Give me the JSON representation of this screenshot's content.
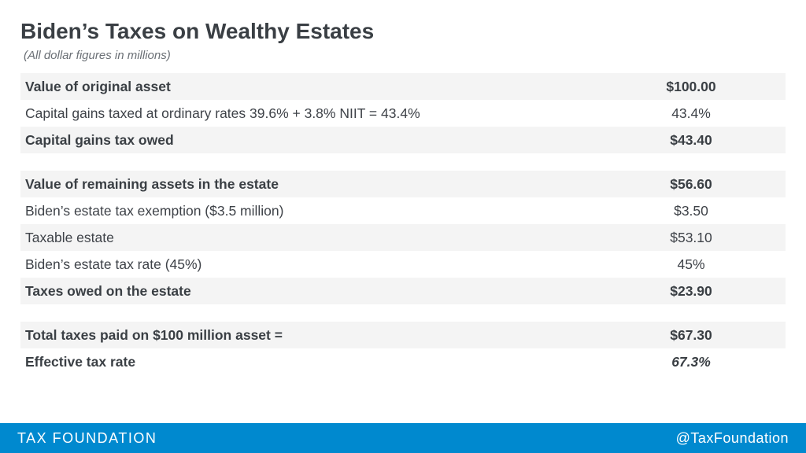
{
  "title": "Biden’s Taxes on Wealthy Estates",
  "subtitle": "(All dollar figures in millions)",
  "rows": [
    {
      "label": "Value of original asset",
      "value": "$100.00",
      "bold": true,
      "shaded": true
    },
    {
      "label": "Capital gains taxed at ordinary rates 39.6% + 3.8% NIIT = 43.4%",
      "value": "43.4%",
      "bold": false,
      "shaded": false
    },
    {
      "label": "Capital gains tax owed",
      "value": "$43.40",
      "bold": true,
      "shaded": true
    },
    {
      "spacer": true
    },
    {
      "label": "Value of remaining assets in the estate",
      "value": "$56.60",
      "bold": true,
      "shaded": true
    },
    {
      "label": "Biden’s estate tax exemption ($3.5 million)",
      "value": "$3.50",
      "bold": false,
      "shaded": false
    },
    {
      "label": "Taxable estate",
      "value": "$53.10",
      "bold": false,
      "shaded": true
    },
    {
      "label": "Biden’s estate tax rate (45%)",
      "value": "45%",
      "bold": false,
      "shaded": false
    },
    {
      "label": "Taxes owed on the estate",
      "value": "$23.90",
      "bold": true,
      "shaded": true
    },
    {
      "spacer": true
    },
    {
      "label": "Total taxes paid on $100 million asset =",
      "value": "$67.30",
      "bold": true,
      "shaded": true
    },
    {
      "label": "Effective tax rate",
      "value": "67.3%",
      "bold": true,
      "shaded": false,
      "italicValue": true
    }
  ],
  "footer": {
    "org": "TAX FOUNDATION",
    "handle": "@TaxFoundation",
    "bg": "#0089cf",
    "fg": "#ffffff"
  },
  "colors": {
    "shaded_bg": "#f4f4f4",
    "text": "#3e4248",
    "title": "#3a3f44"
  }
}
